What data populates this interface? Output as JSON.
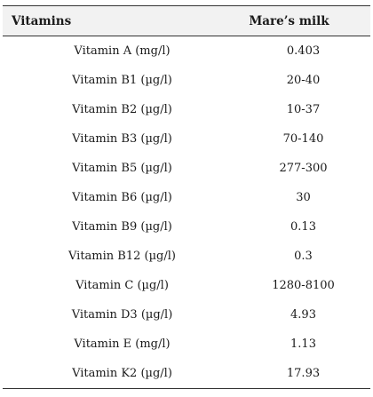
{
  "table": {
    "headers": [
      "Vitamins",
      "Mare’s milk"
    ],
    "rows": [
      [
        "Vitamin A (mg/l)",
        "0.403"
      ],
      [
        "Vitamin B1 (µg/l)",
        "20-40"
      ],
      [
        "Vitamin B2 (µg/l)",
        "10-37"
      ],
      [
        "Vitamin B3 (µg/l)",
        "70-140"
      ],
      [
        "Vitamin B5 (µg/l)",
        "277-300"
      ],
      [
        "Vitamin B6 (µg/l)",
        "30"
      ],
      [
        "Vitamin B9 (µg/l)",
        "0.13"
      ],
      [
        "Vitamin B12 (µg/l)",
        "0.3"
      ],
      [
        "Vitamin C (µg/l)",
        "1280-8100"
      ],
      [
        "Vitamin D3 (µg/l)",
        "4.93"
      ],
      [
        "Vitamin E (mg/l)",
        "1.13"
      ],
      [
        "Vitamin K2 (µg/l)",
        "17.93"
      ]
    ]
  }
}
